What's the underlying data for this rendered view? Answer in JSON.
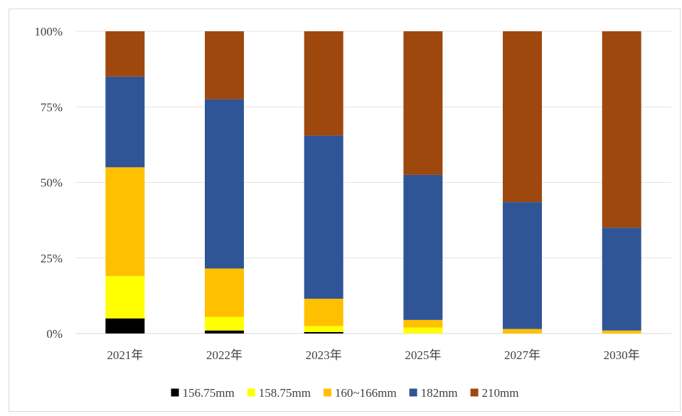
{
  "chart_data": {
    "type": "bar",
    "stacked": true,
    "percent_stacked": true,
    "categories": [
      "2021年",
      "2022年",
      "2023年",
      "2025年",
      "2027年",
      "2030年"
    ],
    "series": [
      {
        "name": "156.75mm",
        "color": "#000000",
        "values": [
          5,
          1,
          0.5,
          0,
          0,
          0
        ]
      },
      {
        "name": "158.75mm",
        "color": "#ffff00",
        "values": [
          14,
          4.5,
          2,
          2,
          0,
          0
        ]
      },
      {
        "name": "160~166mm",
        "color": "#ffc000",
        "values": [
          36,
          16,
          9,
          2.5,
          1.5,
          1
        ]
      },
      {
        "name": "182mm",
        "color": "#2f5597",
        "values": [
          30,
          56,
          54,
          48,
          42,
          34
        ]
      },
      {
        "name": "210mm",
        "color": "#9e480e",
        "values": [
          15,
          22.5,
          34.5,
          47.5,
          56.5,
          65
        ]
      }
    ],
    "yticks": [
      "0%",
      "25%",
      "50%",
      "75%",
      "100%"
    ],
    "ylim": [
      0,
      100
    ],
    "grid": true,
    "legend": "bottom",
    "title": "",
    "xlabel": "",
    "ylabel": ""
  }
}
